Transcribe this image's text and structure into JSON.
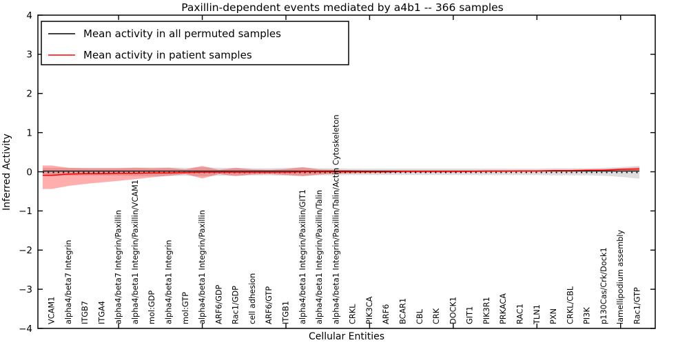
{
  "chart_data": {
    "type": "line",
    "title": "Paxillin-dependent events mediated by a4b1 -- 366 samples",
    "xlabel": "Cellular Entities",
    "ylabel": "Inferred Activity",
    "ylim": [
      -4,
      4
    ],
    "yticks": [
      4,
      3,
      2,
      1,
      0,
      -1,
      -2,
      -3,
      -4
    ],
    "xticks_every5": [
      5,
      10,
      15,
      20,
      25,
      30,
      35
    ],
    "grid": false,
    "legend_position": "upper left",
    "background_color": "#ffffff",
    "axis_color": "#000000",
    "categories": [
      "VCAM1",
      "alpha4/beta7 Integrin",
      "ITGB7",
      "ITGA4",
      "alpha4/beta7 Integrin/Paxillin",
      "alpha4/beta1 Integrin/Paxillin/VCAM1",
      "mol:GDP",
      "alpha4/beta1 Integrin",
      "mol:GTP",
      "alpha4/beta1 Integrin/Paxillin",
      "ARF6/GDP",
      "Rac1/GDP",
      "cell adhesion",
      "ARF6/GTP",
      "ITGB1",
      "alpha4/beta1 Integrin/Paxillin/GIT1",
      "alpha4/beta1 Integrin/Paxillin/Talin",
      "alpha4/beta1 Integrin/Paxillin/Talin/Actin Cytoskeleton",
      "CRKL",
      "PIK3CA",
      "ARF6",
      "BCAR1",
      "CBL",
      "CRK",
      "DOCK1",
      "GIT1",
      "PIK3R1",
      "PRKACA",
      "RAC1",
      "TLN1",
      "PXN",
      "CRKL/CBL",
      "PI3K",
      "p130Cas/Crk/Dock1",
      "lamellipodium assembly",
      "Rac1/GTP"
    ],
    "series": [
      {
        "name": "Mean activity in all permuted samples",
        "color": "#000000",
        "line_style": "solid-with-dotted-overlay",
        "values": [
          0,
          0,
          0,
          0,
          0,
          0,
          0,
          0,
          0,
          0,
          0,
          0,
          0,
          0,
          0,
          0,
          0,
          0,
          0,
          0,
          0,
          0,
          0,
          0,
          0,
          0,
          0,
          0,
          0,
          0,
          0,
          0,
          0,
          0,
          0,
          0
        ],
        "band_color": "#888888",
        "band_opacity": 0.28,
        "band_upper": [
          0.1,
          0.1,
          0.1,
          0.1,
          0.1,
          0.11,
          0.11,
          0.11,
          0.1,
          0.12,
          0.1,
          0.1,
          0.09,
          0.09,
          0.1,
          0.11,
          0.09,
          0.09,
          0.08,
          0.08,
          0.08,
          0.08,
          0.08,
          0.08,
          0.08,
          0.08,
          0.08,
          0.08,
          0.08,
          0.08,
          0.09,
          0.09,
          0.09,
          0.1,
          0.12,
          0.15
        ],
        "band_lower": [
          -0.1,
          -0.1,
          -0.1,
          -0.1,
          -0.1,
          -0.11,
          -0.11,
          -0.11,
          -0.1,
          -0.12,
          -0.1,
          -0.1,
          -0.09,
          -0.09,
          -0.1,
          -0.11,
          -0.09,
          -0.09,
          -0.08,
          -0.08,
          -0.08,
          -0.08,
          -0.08,
          -0.08,
          -0.08,
          -0.08,
          -0.08,
          -0.08,
          -0.08,
          -0.08,
          -0.09,
          -0.09,
          -0.09,
          -0.1,
          -0.13,
          -0.17
        ]
      },
      {
        "name": "Mean activity in patient samples",
        "color": "#ff0000",
        "line_style": "solid",
        "values": [
          -0.09,
          -0.06,
          -0.05,
          -0.05,
          -0.04,
          -0.04,
          -0.03,
          -0.03,
          -0.02,
          -0.01,
          -0.01,
          -0.01,
          -0.01,
          -0.01,
          -0.01,
          0.0,
          0.0,
          0.0,
          0.0,
          0.0,
          0.0,
          0.01,
          0.01,
          0.01,
          0.01,
          0.01,
          0.02,
          0.02,
          0.02,
          0.02,
          0.03,
          0.03,
          0.04,
          0.04,
          0.06,
          0.07
        ],
        "band_color": "#ff0000",
        "band_opacity": 0.32,
        "band_upper": [
          0.16,
          0.1,
          0.09,
          0.09,
          0.09,
          0.1,
          0.09,
          0.1,
          0.06,
          0.15,
          0.05,
          0.1,
          0.06,
          0.05,
          0.07,
          0.12,
          0.06,
          0.05,
          0.04,
          0.03,
          0.03,
          0.03,
          0.03,
          0.03,
          0.03,
          0.03,
          0.03,
          0.03,
          0.04,
          0.04,
          0.05,
          0.05,
          0.06,
          0.07,
          0.09,
          0.11
        ],
        "band_lower": [
          -0.44,
          -0.36,
          -0.31,
          -0.27,
          -0.23,
          -0.19,
          -0.14,
          -0.1,
          -0.06,
          -0.17,
          -0.06,
          -0.11,
          -0.07,
          -0.06,
          -0.08,
          -0.11,
          -0.07,
          -0.05,
          -0.04,
          -0.03,
          -0.03,
          -0.02,
          -0.02,
          -0.02,
          -0.02,
          -0.01,
          -0.01,
          -0.01,
          0.0,
          0.0,
          0.01,
          0.01,
          0.02,
          0.02,
          0.03,
          0.02
        ]
      }
    ]
  }
}
